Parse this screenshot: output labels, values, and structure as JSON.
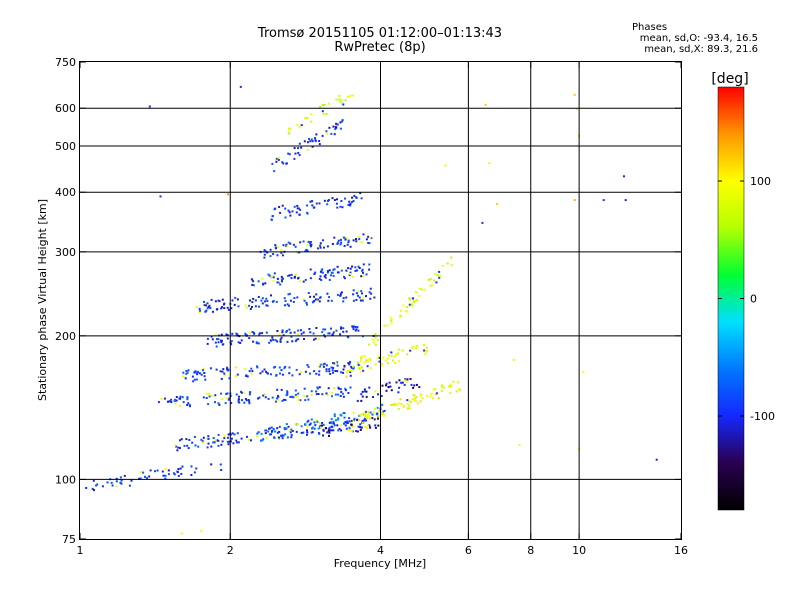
{
  "title_line1": "Tromsø 20151105 01:12:00–01:13:43",
  "title_line2": "RwPretec (8p)",
  "stats": {
    "header": "Phases",
    "o_line": "mean, sd,O: -93.4, 16.5",
    "x_line": "mean, sd,X:  89.3, 21.6"
  },
  "chart_data": {
    "type": "scatter",
    "title": "Tromsø 20151105 01:12:00–01:13:43",
    "subtitle": "RwPretec (8p)",
    "xlabel": "Frequency [MHz]",
    "ylabel": "Stationary phase Virtual Height [km]",
    "x_scale": "log",
    "y_scale": "log",
    "xlim": [
      1,
      16
    ],
    "ylim": [
      75,
      750
    ],
    "x_ticks": [
      1,
      2,
      4,
      6,
      8,
      10,
      16
    ],
    "x_tick_labels": [
      "1",
      "2",
      "4",
      "6",
      "8",
      "10",
      "16"
    ],
    "x_grid": [
      2,
      4,
      6,
      8,
      10
    ],
    "y_ticks": [
      75,
      100,
      200,
      300,
      400,
      500,
      600,
      750
    ],
    "y_tick_labels": [
      "75",
      "100",
      "200",
      "300",
      "400",
      "500",
      "600",
      "750"
    ],
    "y_grid": [
      100,
      200,
      300,
      400,
      500,
      600
    ],
    "grid": true,
    "colorbar": {
      "label": "[deg]",
      "range": [
        -180,
        180
      ],
      "ticks": [
        100,
        0,
        -100
      ],
      "tick_labels": [
        "100",
        "0",
        "-100"
      ],
      "colors": [
        "#000000",
        "#2a0050",
        "#1428ff",
        "#0078ff",
        "#00e0ff",
        "#00ff30",
        "#b4ff00",
        "#ffff00",
        "#ff9600",
        "#ff0000"
      ]
    },
    "traces": [
      {
        "f0": 1.0,
        "f1": 1.95,
        "h0": 96,
        "h1": 108,
        "phase": -95,
        "n": 55
      },
      {
        "f0": 1.55,
        "f1": 3.8,
        "h0": 118,
        "h1": 132,
        "phase": -95,
        "n": 150
      },
      {
        "f0": 2.3,
        "f1": 4.1,
        "h0": 124,
        "h1": 140,
        "phase": -70,
        "n": 70
      },
      {
        "f0": 3.0,
        "f1": 4.0,
        "h0": 126,
        "h1": 132,
        "phase": -125,
        "n": 40
      },
      {
        "f0": 1.4,
        "f1": 3.5,
        "h0": 145,
        "h1": 153,
        "phase": -90,
        "n": 130
      },
      {
        "f0": 3.5,
        "f1": 5.8,
        "h0": 132,
        "h1": 158,
        "phase": 95,
        "n": 80
      },
      {
        "f0": 3.6,
        "f1": 4.8,
        "h0": 150,
        "h1": 160,
        "phase": -115,
        "n": 40
      },
      {
        "f0": 1.6,
        "f1": 3.6,
        "h0": 165,
        "h1": 172,
        "phase": -95,
        "n": 120
      },
      {
        "f0": 3.4,
        "f1": 5.0,
        "h0": 168,
        "h1": 190,
        "phase": 90,
        "n": 60
      },
      {
        "f0": 1.8,
        "f1": 3.7,
        "h0": 195,
        "h1": 205,
        "phase": -95,
        "n": 120
      },
      {
        "f0": 1.7,
        "f1": 3.9,
        "h0": 230,
        "h1": 245,
        "phase": -95,
        "n": 120
      },
      {
        "f0": 2.2,
        "f1": 3.8,
        "h0": 260,
        "h1": 275,
        "phase": -95,
        "n": 90
      },
      {
        "f0": 2.3,
        "f1": 3.9,
        "h0": 300,
        "h1": 320,
        "phase": -95,
        "n": 80
      },
      {
        "f0": 2.4,
        "f1": 3.7,
        "h0": 360,
        "h1": 390,
        "phase": -95,
        "n": 60
      },
      {
        "f0": 2.4,
        "f1": 3.4,
        "h0": 450,
        "h1": 560,
        "phase": -95,
        "n": 50
      },
      {
        "f0": 2.6,
        "f1": 3.6,
        "h0": 540,
        "h1": 650,
        "phase": 80,
        "n": 30
      },
      {
        "f0": 3.6,
        "f1": 5.6,
        "h0": 180,
        "h1": 290,
        "phase": 80,
        "n": 60
      }
    ],
    "stray_points": [
      {
        "f": 1.38,
        "h": 605,
        "phase": -95
      },
      {
        "f": 1.45,
        "h": 392,
        "phase": -95
      },
      {
        "f": 1.98,
        "h": 396,
        "phase": 140
      },
      {
        "f": 2.1,
        "h": 665,
        "phase": -95
      },
      {
        "f": 5.4,
        "h": 455,
        "phase": 90
      },
      {
        "f": 6.5,
        "h": 610,
        "phase": 120
      },
      {
        "f": 6.6,
        "h": 460,
        "phase": 90
      },
      {
        "f": 6.85,
        "h": 378,
        "phase": 120
      },
      {
        "f": 6.4,
        "h": 345,
        "phase": -95
      },
      {
        "f": 7.4,
        "h": 178,
        "phase": 90
      },
      {
        "f": 7.6,
        "h": 118,
        "phase": 90
      },
      {
        "f": 9.8,
        "h": 640,
        "phase": 120
      },
      {
        "f": 9.9,
        "h": 598,
        "phase": 110
      },
      {
        "f": 10.0,
        "h": 525,
        "phase": 110
      },
      {
        "f": 9.8,
        "h": 385,
        "phase": 130
      },
      {
        "f": 10.2,
        "h": 168,
        "phase": 100
      },
      {
        "f": 10.0,
        "h": 116,
        "phase": 100
      },
      {
        "f": 11.2,
        "h": 385,
        "phase": -95
      },
      {
        "f": 12.4,
        "h": 385,
        "phase": -110
      },
      {
        "f": 12.3,
        "h": 432,
        "phase": -100
      },
      {
        "f": 14.3,
        "h": 110,
        "phase": -110
      },
      {
        "f": 1.6,
        "h": 77,
        "phase": 90
      },
      {
        "f": 1.75,
        "h": 78,
        "phase": 100
      }
    ]
  }
}
